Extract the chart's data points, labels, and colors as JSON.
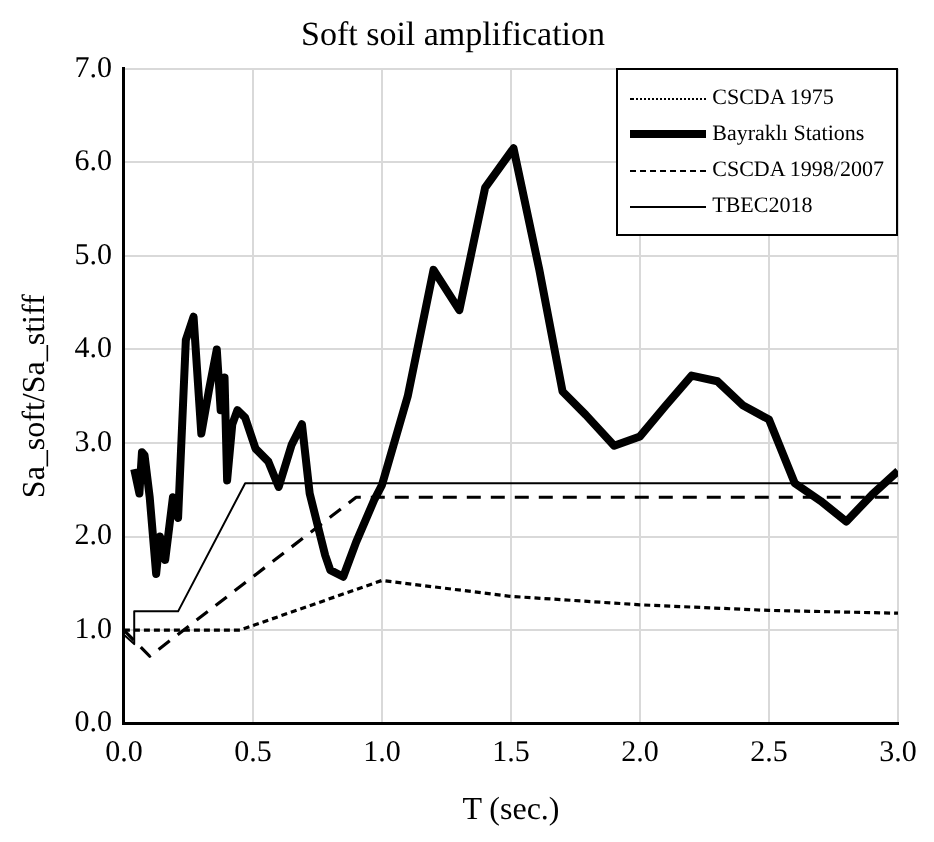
{
  "chart_data": {
    "type": "line",
    "title": "Soft soil amplification",
    "xlabel": "T (sec.)",
    "ylabel": "Sa_soft/Sa_stiff",
    "xlim": [
      0,
      3
    ],
    "xticks": [
      {
        "value": 0,
        "label": "0.0"
      },
      {
        "value": 0.5,
        "label": "0.5"
      },
      {
        "value": 1,
        "label": "1.0"
      },
      {
        "value": 1.5,
        "label": "1.5"
      },
      {
        "value": 2,
        "label": "2.0"
      },
      {
        "value": 2.5,
        "label": "2.5"
      },
      {
        "value": 3,
        "label": "3.0"
      }
    ],
    "ylim": [
      0,
      7
    ],
    "yticks": [
      {
        "value": 0,
        "label": "0.0"
      },
      {
        "value": 1,
        "label": "1.0"
      },
      {
        "value": 2,
        "label": "2.0"
      },
      {
        "value": 3,
        "label": "3.0"
      },
      {
        "value": 4,
        "label": "4.0"
      },
      {
        "value": 5,
        "label": "5.0"
      },
      {
        "value": 6,
        "label": "6.0"
      },
      {
        "value": 7,
        "label": "7.0"
      }
    ],
    "grid": true,
    "legend": "top right",
    "marker": "none",
    "series": [
      {
        "name": "CSCDA 1975",
        "color": "#000000",
        "line_style": "dotted",
        "x": [
          0,
          0.45,
          1.0,
          1.5,
          2.0,
          2.5,
          3.0
        ],
        "values": [
          1.0,
          1.0,
          1.53,
          1.36,
          1.27,
          1.21,
          1.18
        ]
      },
      {
        "name": "Bayraklı Stations",
        "color": "#000000",
        "line_style": "solid",
        "x": [
          0.04,
          0.06,
          0.07,
          0.08,
          0.1,
          0.125,
          0.14,
          0.16,
          0.19,
          0.21,
          0.24,
          0.27,
          0.3,
          0.33,
          0.36,
          0.375,
          0.39,
          0.4,
          0.42,
          0.44,
          0.47,
          0.51,
          0.56,
          0.6,
          0.65,
          0.69,
          0.72,
          0.78,
          0.8,
          0.85,
          0.9,
          0.97,
          1.0,
          1.1,
          1.2,
          1.3,
          1.4,
          1.51,
          1.61,
          1.7,
          1.79,
          1.9,
          2.0,
          2.1,
          2.2,
          2.3,
          2.4,
          2.5,
          2.6,
          2.7,
          2.8,
          2.9,
          3.0
        ],
        "values": [
          2.72,
          2.46,
          2.9,
          2.87,
          2.42,
          1.6,
          2.0,
          1.75,
          2.42,
          2.2,
          4.1,
          4.35,
          3.1,
          3.57,
          4.0,
          3.35,
          3.7,
          2.6,
          3.2,
          3.35,
          3.27,
          2.94,
          2.8,
          2.53,
          2.98,
          3.2,
          2.46,
          1.8,
          1.64,
          1.57,
          1.94,
          2.39,
          2.55,
          3.5,
          4.85,
          4.42,
          5.73,
          6.15,
          4.85,
          3.55,
          3.3,
          2.97,
          3.07,
          3.4,
          3.72,
          3.66,
          3.4,
          3.25,
          2.57,
          2.38,
          2.16,
          2.45,
          2.7
        ]
      },
      {
        "name": "CSCDA 1998/2007",
        "color": "#000000",
        "line_style": "dashed",
        "x": [
          0,
          0.1,
          0.9,
          3.0
        ],
        "values": [
          1.0,
          0.72,
          2.42,
          2.42
        ]
      },
      {
        "name": "TBEC2018",
        "color": "#000000",
        "line_style": "solid",
        "x": [
          0,
          0.04,
          0.04,
          0.21,
          0.47,
          3.0
        ],
        "values": [
          0.95,
          0.85,
          1.2,
          1.2,
          2.57,
          2.57
        ]
      }
    ]
  }
}
